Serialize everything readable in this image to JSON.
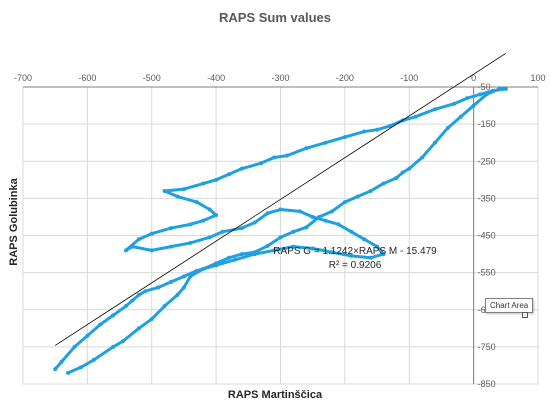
{
  "chart_data": {
    "type": "scatter",
    "title": "RAPS Sum values",
    "xlabel": "RAPS Martinščica",
    "ylabel": "RAPS Golubinka",
    "xlim": [
      -700,
      100
    ],
    "ylim": [
      -850,
      -50
    ],
    "x_ticks": [
      -700,
      -600,
      -500,
      -400,
      -300,
      -200,
      -100,
      0,
      100
    ],
    "y_ticks": [
      -50,
      -150,
      -250,
      -350,
      -450,
      -550,
      -650,
      -750,
      -850
    ],
    "x_tick_labels": [
      "-700",
      "-600",
      "-500",
      "-400",
      "-300",
      "-200",
      "-100",
      "0",
      "100"
    ],
    "y_tick_labels": [
      "-50",
      "-150",
      "-250",
      "-350",
      "-450",
      "-550",
      "-650",
      "-750",
      "-850"
    ],
    "grid": true,
    "series": [
      {
        "color": "#1fa0e0",
        "points": [
          [
            -630,
            -820
          ],
          [
            -610,
            -805
          ],
          [
            -590,
            -785
          ],
          [
            -560,
            -750
          ],
          [
            -545,
            -735
          ],
          [
            -520,
            -700
          ],
          [
            -500,
            -675
          ],
          [
            -480,
            -640
          ],
          [
            -460,
            -610
          ],
          [
            -450,
            -590
          ],
          [
            -440,
            -560
          ],
          [
            -420,
            -540
          ],
          [
            -400,
            -525
          ],
          [
            -380,
            -510
          ],
          [
            -360,
            -500
          ],
          [
            -340,
            -495
          ],
          [
            -320,
            -478
          ],
          [
            -300,
            -455
          ],
          [
            -280,
            -440
          ],
          [
            -260,
            -428
          ],
          [
            -240,
            -400
          ],
          [
            -220,
            -385
          ],
          [
            -200,
            -360
          ],
          [
            -180,
            -345
          ],
          [
            -160,
            -330
          ],
          [
            -140,
            -310
          ],
          [
            -120,
            -295
          ],
          [
            -110,
            -280
          ],
          [
            -100,
            -270
          ],
          [
            -80,
            -240
          ],
          [
            -60,
            -200
          ],
          [
            -40,
            -160
          ],
          [
            -20,
            -130
          ],
          [
            0,
            -100
          ],
          [
            20,
            -70
          ],
          [
            40,
            -55
          ],
          [
            50,
            -55
          ],
          [
            30,
            -60
          ],
          [
            10,
            -70
          ],
          [
            -10,
            -80
          ],
          [
            -30,
            -95
          ],
          [
            -60,
            -110
          ],
          [
            -90,
            -130
          ],
          [
            -110,
            -140
          ],
          [
            -130,
            -155
          ],
          [
            -150,
            -165
          ],
          [
            -170,
            -170
          ],
          [
            -200,
            -185
          ],
          [
            -230,
            -200
          ],
          [
            -260,
            -215
          ],
          [
            -290,
            -235
          ],
          [
            -310,
            -240
          ],
          [
            -330,
            -255
          ],
          [
            -360,
            -270
          ],
          [
            -380,
            -285
          ],
          [
            -400,
            -300
          ],
          [
            -420,
            -310
          ],
          [
            -450,
            -325
          ],
          [
            -480,
            -330
          ],
          [
            -460,
            -345
          ],
          [
            -430,
            -360
          ],
          [
            -410,
            -380
          ],
          [
            -400,
            -395
          ],
          [
            -420,
            -410
          ],
          [
            -440,
            -420
          ],
          [
            -470,
            -430
          ],
          [
            -500,
            -445
          ],
          [
            -520,
            -460
          ],
          [
            -540,
            -490
          ],
          [
            -530,
            -480
          ],
          [
            -500,
            -490
          ],
          [
            -470,
            -480
          ],
          [
            -440,
            -470
          ],
          [
            -410,
            -455
          ],
          [
            -390,
            -440
          ],
          [
            -360,
            -430
          ],
          [
            -340,
            -415
          ],
          [
            -320,
            -390
          ],
          [
            -300,
            -380
          ],
          [
            -270,
            -385
          ],
          [
            -250,
            -400
          ],
          [
            -230,
            -410
          ],
          [
            -210,
            -420
          ],
          [
            -190,
            -440
          ],
          [
            -170,
            -460
          ],
          [
            -150,
            -480
          ],
          [
            -140,
            -500
          ],
          [
            -160,
            -510
          ],
          [
            -190,
            -505
          ],
          [
            -220,
            -495
          ],
          [
            -250,
            -485
          ],
          [
            -280,
            -480
          ],
          [
            -310,
            -490
          ],
          [
            -340,
            -500
          ],
          [
            -370,
            -515
          ],
          [
            -400,
            -530
          ],
          [
            -430,
            -545
          ],
          [
            -450,
            -560
          ],
          [
            -470,
            -575
          ],
          [
            -490,
            -590
          ],
          [
            -510,
            -600
          ],
          [
            -520,
            -610
          ],
          [
            -530,
            -625
          ],
          [
            -540,
            -640
          ],
          [
            -560,
            -665
          ],
          [
            -580,
            -690
          ],
          [
            -600,
            -720
          ],
          [
            -620,
            -750
          ],
          [
            -640,
            -790
          ],
          [
            -650,
            -810
          ]
        ]
      }
    ],
    "trendline": {
      "type": "linear",
      "slope": 1.1242,
      "intercept": -15.479,
      "x_range": [
        -650,
        50
      ],
      "color": "#000000"
    },
    "annotations": {
      "equation": "RAPS G = 1.1242×RAPS M - 15.479",
      "r_squared": "R² = 0.9206"
    },
    "tooltip": "Chart Area"
  }
}
